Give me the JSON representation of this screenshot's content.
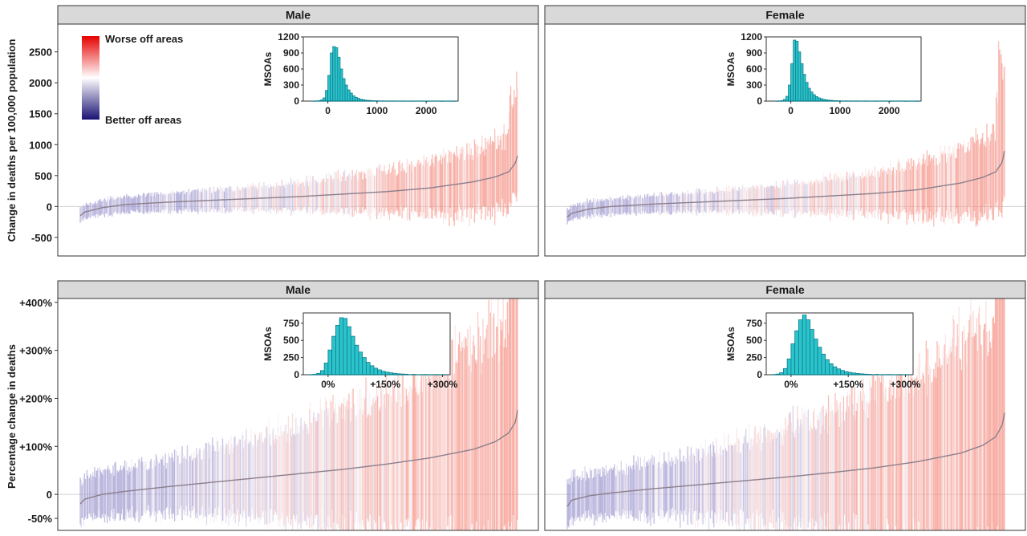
{
  "figure": {
    "row_labels": [
      "Change in deaths per 100,000 population",
      "Percentage change in deaths"
    ],
    "legend": {
      "top_label": "Worse off areas",
      "bottom_label": "Better off areas",
      "colors": {
        "worse": "#e60000",
        "neutral": "#ffffff",
        "better": "#1a1273"
      }
    },
    "line_color": "#8c7f8c",
    "fill_color_worse": "#f47d6e",
    "fill_color_better": "#8c86c8"
  },
  "chart_data": [
    {
      "type": "line",
      "row": 0,
      "col": 0,
      "strip": "Male",
      "description_y": "Change in deaths per 100,000 population",
      "ylim": [
        -800,
        2950
      ],
      "yticks": [
        -500,
        0,
        500,
        1000,
        1500,
        2000,
        2500
      ],
      "ytick_labels": [
        "-500",
        "0",
        "500",
        "1000",
        "1500",
        "2000",
        "2500"
      ],
      "zero_line": 0,
      "curve_quantiles": [
        0,
        0.01,
        0.05,
        0.1,
        0.2,
        0.3,
        0.4,
        0.5,
        0.6,
        0.7,
        0.8,
        0.9,
        0.95,
        0.98,
        0.995,
        1
      ],
      "curve_values": [
        -150,
        -90,
        -20,
        30,
        70,
        100,
        130,
        160,
        200,
        240,
        300,
        400,
        480,
        560,
        700,
        820
      ],
      "ci_half_width_quantile_values": [
        120,
        130,
        150,
        180,
        230,
        300,
        380,
        500,
        600
      ]
    },
    {
      "type": "line",
      "row": 0,
      "col": 1,
      "strip": "Female",
      "ylim": [
        -800,
        2950
      ],
      "zero_line": 0,
      "curve_quantiles": [
        0,
        0.01,
        0.05,
        0.1,
        0.2,
        0.3,
        0.4,
        0.5,
        0.6,
        0.7,
        0.8,
        0.9,
        0.95,
        0.98,
        0.995,
        1
      ],
      "curve_values": [
        -170,
        -110,
        -40,
        0,
        40,
        70,
        100,
        130,
        170,
        210,
        270,
        380,
        470,
        560,
        720,
        900
      ],
      "ci_half_width_quantile_values": [
        120,
        130,
        150,
        180,
        230,
        300,
        380,
        520,
        700
      ]
    },
    {
      "type": "line",
      "row": 1,
      "col": 0,
      "strip": "Male",
      "description_y": "Percentage change in deaths",
      "ylim": [
        -75,
        408
      ],
      "yticks": [
        -50,
        0,
        100,
        200,
        300,
        400
      ],
      "ytick_labels": [
        "-50%",
        "0",
        "+100%",
        "+200%",
        "+300%",
        "+400%"
      ],
      "zero_line": 0,
      "curve_quantiles": [
        0,
        0.01,
        0.05,
        0.1,
        0.2,
        0.3,
        0.4,
        0.5,
        0.6,
        0.7,
        0.8,
        0.9,
        0.95,
        0.98,
        0.995,
        1
      ],
      "curve_values": [
        -20,
        -10,
        0,
        6,
        16,
        25,
        34,
        43,
        52,
        63,
        76,
        94,
        110,
        128,
        150,
        175
      ],
      "ci_half_width_quantile_values": [
        45,
        50,
        60,
        80,
        100,
        130,
        160,
        200,
        250
      ]
    },
    {
      "type": "line",
      "row": 1,
      "col": 1,
      "strip": "Female",
      "ylim": [
        -75,
        408
      ],
      "zero_line": 0,
      "curve_quantiles": [
        0,
        0.01,
        0.05,
        0.1,
        0.2,
        0.3,
        0.4,
        0.5,
        0.6,
        0.7,
        0.8,
        0.9,
        0.95,
        0.98,
        0.995,
        1
      ],
      "curve_values": [
        -25,
        -12,
        -3,
        3,
        12,
        20,
        28,
        36,
        45,
        55,
        68,
        86,
        102,
        120,
        145,
        170
      ],
      "ci_half_width_quantile_values": [
        45,
        50,
        60,
        80,
        100,
        130,
        160,
        210,
        260
      ]
    },
    {
      "type": "bar",
      "inset_of": "Male (deaths per 100,000)",
      "ylabel": "MSOAs",
      "xlim": [
        -500,
        2650
      ],
      "ylim": [
        0,
        1200
      ],
      "xticks": [
        0,
        1000,
        2000
      ],
      "xtick_labels": [
        "0",
        "1000",
        "2000"
      ],
      "yticks": [
        0,
        300,
        600,
        900,
        1200
      ],
      "ytick_labels": [
        "0",
        "300",
        "600",
        "900",
        "1200"
      ],
      "bin_width": 50,
      "bin_starts": [
        -300,
        -250,
        -200,
        -150,
        -100,
        -50,
        0,
        50,
        100,
        150,
        200,
        250,
        300,
        350,
        400,
        450,
        500,
        550,
        600,
        650,
        700,
        750,
        800,
        850,
        900,
        950,
        1000,
        1100,
        1200,
        1300,
        1500,
        1700,
        2000,
        2300,
        2550
      ],
      "values": [
        1,
        3,
        8,
        20,
        60,
        200,
        480,
        900,
        1020,
        1000,
        820,
        600,
        420,
        300,
        210,
        150,
        100,
        70,
        50,
        35,
        25,
        18,
        14,
        10,
        8,
        6,
        5,
        4,
        3,
        3,
        2,
        2,
        1,
        1,
        1
      ]
    },
    {
      "type": "bar",
      "inset_of": "Female (deaths per 100,000)",
      "ylabel": "MSOAs",
      "xlim": [
        -500,
        2650
      ],
      "ylim": [
        0,
        1200
      ],
      "xticks": [
        0,
        1000,
        2000
      ],
      "xtick_labels": [
        "0",
        "1000",
        "2000"
      ],
      "yticks": [
        0,
        300,
        600,
        900,
        1200
      ],
      "ytick_labels": [
        "0",
        "300",
        "600",
        "900",
        "1200"
      ],
      "bin_width": 50,
      "bin_starts": [
        -300,
        -250,
        -200,
        -150,
        -100,
        -50,
        0,
        50,
        100,
        150,
        200,
        250,
        300,
        350,
        400,
        450,
        500,
        550,
        600,
        650,
        700,
        750,
        800,
        850,
        900,
        950,
        1000,
        1100,
        1200,
        1300,
        1500,
        1700,
        2000,
        2300,
        2550
      ],
      "values": [
        1,
        4,
        10,
        30,
        90,
        300,
        700,
        1140,
        1120,
        920,
        700,
        500,
        350,
        240,
        170,
        120,
        85,
        60,
        45,
        32,
        24,
        18,
        14,
        10,
        8,
        6,
        5,
        4,
        3,
        3,
        2,
        2,
        1,
        1,
        1
      ]
    },
    {
      "type": "bar",
      "inset_of": "Male (percentage change)",
      "ylabel": "MSOAs",
      "xlim": [
        -65,
        320
      ],
      "ylim": [
        0,
        900
      ],
      "xticks": [
        0,
        150,
        300
      ],
      "xtick_labels": [
        "0%",
        "+150%",
        "+300%"
      ],
      "yticks": [
        0,
        250,
        500,
        750
      ],
      "ytick_labels": [
        "0",
        "250",
        "500",
        "750"
      ],
      "bin_width": 10,
      "bin_starts": [
        -50,
        -40,
        -30,
        -20,
        -10,
        0,
        10,
        20,
        30,
        40,
        50,
        60,
        70,
        80,
        90,
        100,
        110,
        120,
        130,
        140,
        150,
        160,
        170,
        180,
        190,
        200,
        220,
        250,
        280,
        300
      ],
      "values": [
        2,
        6,
        20,
        60,
        170,
        360,
        560,
        720,
        830,
        820,
        700,
        560,
        430,
        330,
        250,
        180,
        130,
        95,
        70,
        50,
        38,
        28,
        20,
        14,
        10,
        8,
        5,
        3,
        2,
        1
      ]
    },
    {
      "type": "bar",
      "inset_of": "Female (percentage change)",
      "ylabel": "MSOAs",
      "xlim": [
        -65,
        320
      ],
      "ylim": [
        0,
        900
      ],
      "xticks": [
        0,
        150,
        300
      ],
      "xtick_labels": [
        "0%",
        "+150%",
        "+300%"
      ],
      "yticks": [
        0,
        250,
        500,
        750
      ],
      "ytick_labels": [
        "0",
        "250",
        "500",
        "750"
      ],
      "bin_width": 10,
      "bin_starts": [
        -50,
        -40,
        -30,
        -20,
        -10,
        0,
        10,
        20,
        30,
        40,
        50,
        60,
        70,
        80,
        90,
        100,
        110,
        120,
        130,
        140,
        150,
        160,
        170,
        180,
        190,
        200,
        220,
        250,
        280,
        300
      ],
      "values": [
        3,
        10,
        30,
        90,
        230,
        450,
        640,
        800,
        870,
        800,
        660,
        520,
        400,
        300,
        220,
        160,
        115,
        85,
        62,
        45,
        34,
        25,
        18,
        13,
        9,
        7,
        5,
        3,
        2,
        1
      ]
    }
  ]
}
